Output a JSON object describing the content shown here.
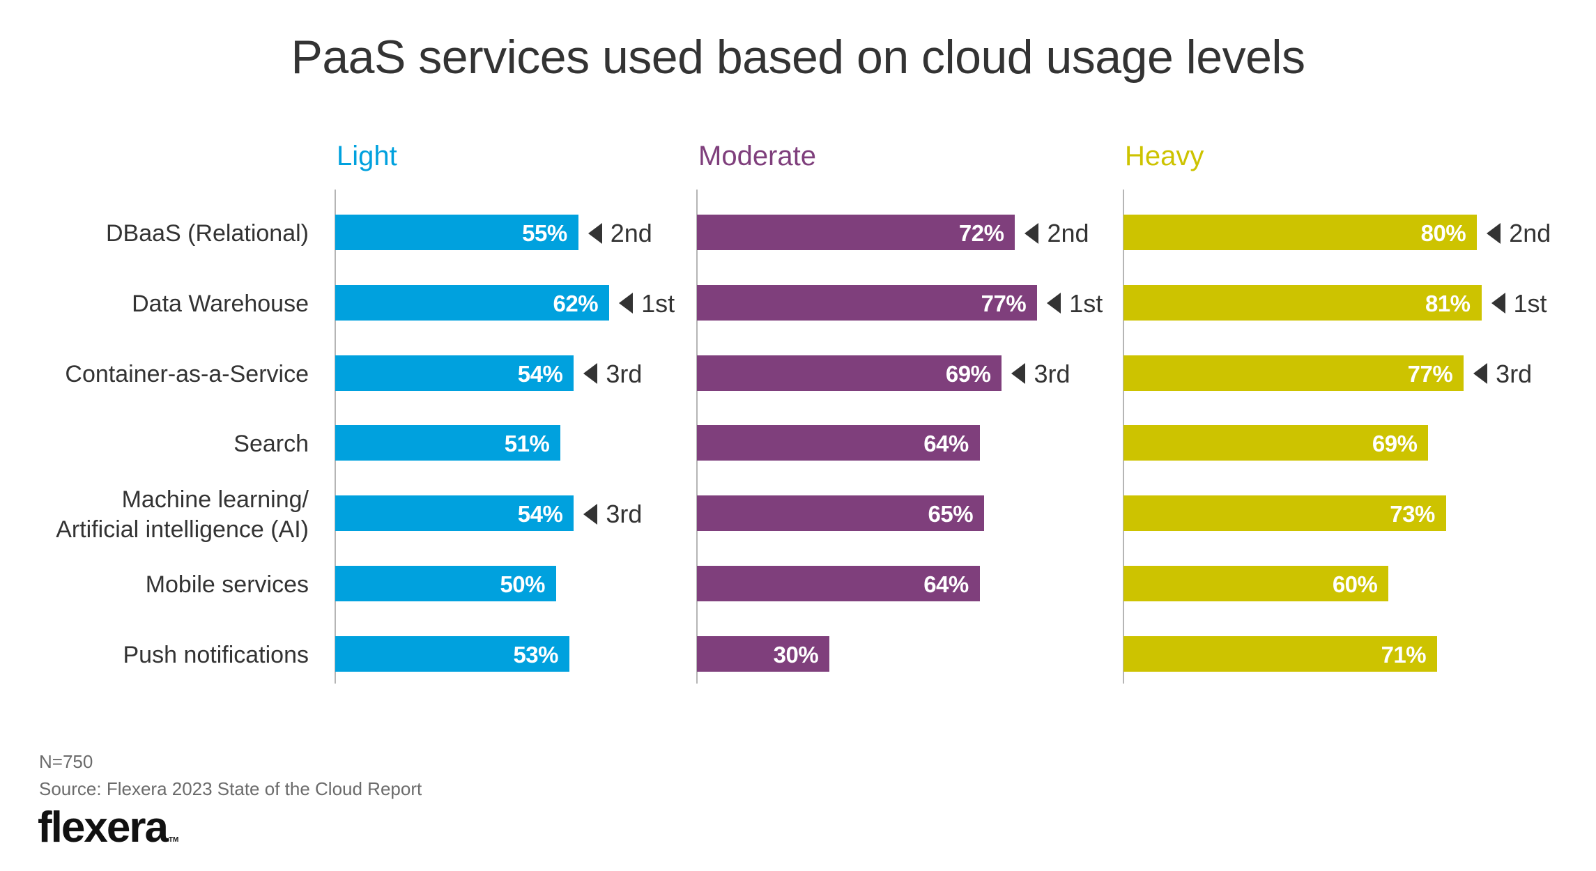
{
  "chart_data": {
    "type": "bar",
    "orientation": "horizontal",
    "title": "PaaS services used based on cloud usage levels",
    "xlabel": "",
    "ylabel": "",
    "xlim": [
      0,
      100
    ],
    "grid": false,
    "categories": [
      "DBaaS (Relational)",
      "Data Warehouse",
      "Container-as-a-Service",
      "Search",
      "Machine learning/\nArtificial intelligence (AI)",
      "Mobile services",
      "Push notifications"
    ],
    "series": [
      {
        "name": "Light",
        "color": "#00a1de",
        "values": [
          55,
          62,
          54,
          51,
          54,
          50,
          53
        ],
        "labels": [
          "55%",
          "62%",
          "54%",
          "51%",
          "54%",
          "50%",
          "53%"
        ],
        "ranks": [
          "2nd",
          "1st",
          "3rd",
          null,
          "3rd",
          null,
          null
        ]
      },
      {
        "name": "Moderate",
        "color": "#7f3f7c",
        "values": [
          72,
          77,
          69,
          64,
          65,
          64,
          30
        ],
        "labels": [
          "72%",
          "77%",
          "69%",
          "64%",
          "65%",
          "64%",
          "30%"
        ],
        "ranks": [
          "2nd",
          "1st",
          "3rd",
          null,
          null,
          null,
          null
        ]
      },
      {
        "name": "Heavy",
        "color": "#cdc300",
        "values": [
          80,
          81,
          77,
          69,
          73,
          60,
          71
        ],
        "labels": [
          "80%",
          "81%",
          "77%",
          "69%",
          "73%",
          "60%",
          "71%"
        ],
        "ranks": [
          "2nd",
          "1st",
          "3rd",
          null,
          null,
          null,
          null
        ]
      }
    ],
    "annotations": [
      "rank markers: triangle pointer with 1st/2nd/3rd next to top-3 bars in each panel"
    ]
  },
  "footer": {
    "sample_size": "N=750",
    "source": "Source: Flexera 2023 State of the Cloud Report",
    "logo": "flexera",
    "logo_tm": "TM"
  }
}
